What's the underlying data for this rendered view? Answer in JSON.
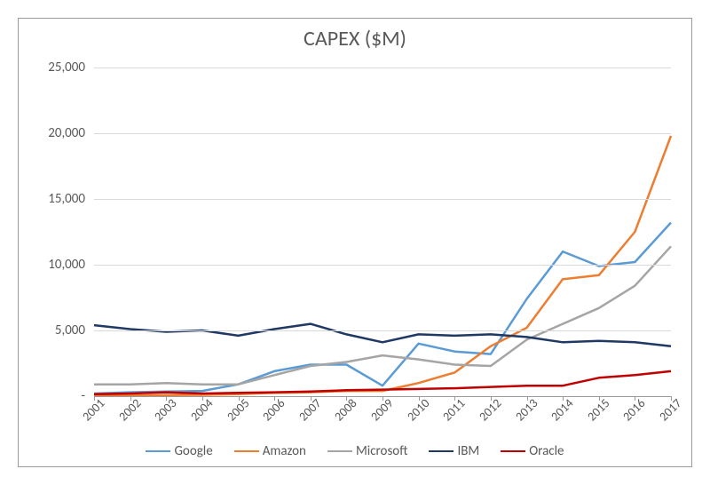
{
  "chart": {
    "type": "line",
    "title": "CAPEX ($M)",
    "title_fontsize": 24,
    "title_color": "#595959",
    "background_color": "#ffffff",
    "grid_color": "#d9d9d9",
    "axis_color": "#9a9a9a",
    "label_color": "#595959",
    "label_fontsize": 15,
    "line_width": 2.5,
    "categories": [
      "2001",
      "2002",
      "2003",
      "2004",
      "2005",
      "2006",
      "2007",
      "2008",
      "2009",
      "2010",
      "2011",
      "2012",
      "2013",
      "2014",
      "2015",
      "2016",
      "2017"
    ],
    "y_ticks": [
      0,
      5000,
      10000,
      15000,
      20000,
      25000
    ],
    "y_tick_labels": [
      "-",
      "5,000",
      "10,000",
      "15,000",
      "20,000",
      "25,000"
    ],
    "ylim": [
      0,
      25000
    ],
    "series": [
      {
        "name": "Google",
        "color": "#5b9bd5",
        "data": [
          200,
          300,
          350,
          400,
          900,
          1900,
          2400,
          2400,
          800,
          4000,
          3400,
          3200,
          7400,
          11000,
          9900,
          10200,
          13200
        ]
      },
      {
        "name": "Amazon",
        "color": "#ed7d31",
        "data": [
          50,
          50,
          80,
          100,
          150,
          250,
          300,
          400,
          400,
          1000,
          1800,
          3800,
          5200,
          8900,
          9200,
          12500,
          19800
        ]
      },
      {
        "name": "Microsoft",
        "color": "#a5a5a5",
        "data": [
          900,
          900,
          1000,
          900,
          900,
          1600,
          2300,
          2600,
          3100,
          2800,
          2400,
          2300,
          4300,
          5500,
          6700,
          8400,
          11400
        ]
      },
      {
        "name": "IBM",
        "color": "#1f3864",
        "data": [
          5400,
          5100,
          4900,
          5000,
          4600,
          5100,
          5500,
          4700,
          4100,
          4700,
          4600,
          4700,
          4500,
          4100,
          4200,
          4100,
          3800
        ]
      },
      {
        "name": "Oracle",
        "color": "#c00000",
        "data": [
          150,
          200,
          300,
          200,
          250,
          300,
          350,
          450,
          500,
          550,
          600,
          700,
          800,
          800,
          1400,
          1600,
          1900
        ]
      }
    ],
    "legend_position": "bottom"
  }
}
